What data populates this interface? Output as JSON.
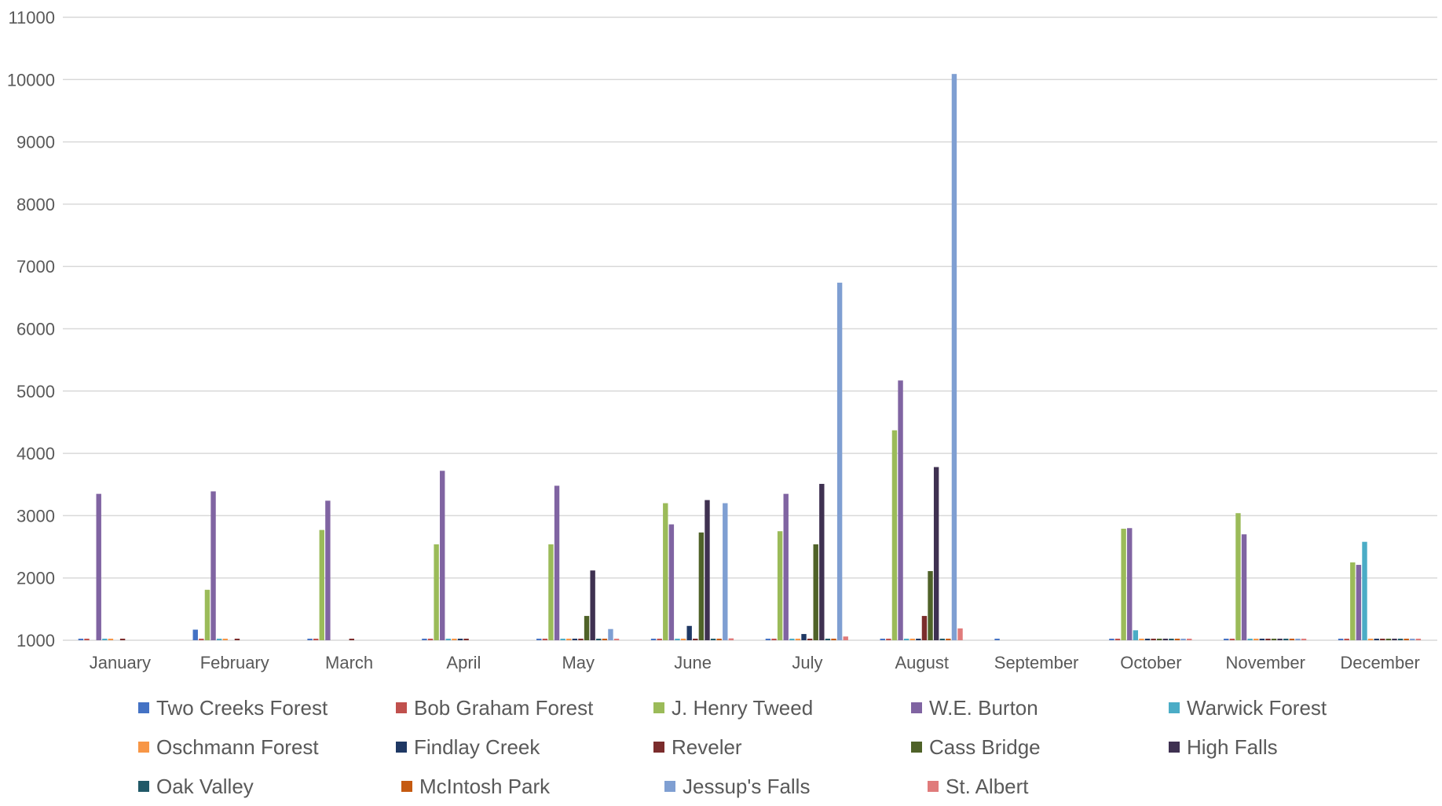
{
  "chart_data": {
    "type": "bar",
    "title": "",
    "xlabel": "",
    "ylabel": "",
    "ylim": [
      1000,
      11000
    ],
    "yticks": [
      1000,
      2000,
      3000,
      4000,
      5000,
      6000,
      7000,
      8000,
      9000,
      10000,
      11000
    ],
    "grid": true,
    "legend_position": "bottom",
    "categories": [
      "January",
      "February",
      "March",
      "April",
      "May",
      "June",
      "July",
      "August",
      "September",
      "October",
      "November",
      "December"
    ],
    "series": [
      {
        "name": "Two Creeks Forest",
        "color": "#4472C4",
        "values": [
          1000,
          1170,
          1000,
          1000,
          1000,
          1000,
          1000,
          1000,
          1000,
          1000,
          1000,
          1000
        ]
      },
      {
        "name": "Bob Graham Forest",
        "color": "#C0504D",
        "values": [
          1000,
          1000,
          1000,
          1000,
          1000,
          1000,
          1000,
          1000,
          null,
          1000,
          1000,
          1000
        ]
      },
      {
        "name": "J. Henry Tweed",
        "color": "#9BBB59",
        "values": [
          null,
          1810,
          2770,
          2540,
          2540,
          3200,
          2750,
          4370,
          null,
          2790,
          3040,
          2250
        ]
      },
      {
        "name": "W.E. Burton",
        "color": "#8064A2",
        "values": [
          3350,
          3390,
          3240,
          3720,
          3480,
          2860,
          3350,
          5170,
          null,
          2800,
          2700,
          2210
        ]
      },
      {
        "name": "Warwick Forest",
        "color": "#4BACC6",
        "values": [
          1000,
          1020,
          null,
          1000,
          1000,
          1000,
          1000,
          1000,
          null,
          1160,
          1000,
          2580
        ]
      },
      {
        "name": "Oschmann Forest",
        "color": "#F79646",
        "values": [
          1000,
          1000,
          null,
          1000,
          1000,
          1000,
          1000,
          1000,
          null,
          1000,
          1000,
          1000
        ]
      },
      {
        "name": "Findlay Creek",
        "color": "#1F3864",
        "values": [
          null,
          null,
          null,
          1000,
          1000,
          1230,
          1100,
          1000,
          null,
          1000,
          1000,
          1000
        ]
      },
      {
        "name": "Reveler",
        "color": "#7B2C2C",
        "values": [
          1000,
          1000,
          1000,
          1000,
          1000,
          1000,
          1000,
          1390,
          null,
          1000,
          1000,
          1000
        ]
      },
      {
        "name": "Cass Bridge",
        "color": "#4F6228",
        "values": [
          null,
          null,
          null,
          null,
          1390,
          2730,
          2540,
          2110,
          null,
          1000,
          1000,
          1000
        ]
      },
      {
        "name": "High Falls",
        "color": "#3F3151",
        "values": [
          null,
          null,
          null,
          null,
          2120,
          3250,
          3510,
          3780,
          null,
          1000,
          1000,
          1000
        ]
      },
      {
        "name": "Oak Valley",
        "color": "#215968",
        "values": [
          null,
          null,
          null,
          null,
          1000,
          1000,
          1000,
          1000,
          null,
          1000,
          1000,
          1000
        ]
      },
      {
        "name": "McIntosh Park",
        "color": "#C55A11",
        "values": [
          null,
          null,
          null,
          null,
          1000,
          1000,
          1000,
          1000,
          null,
          1000,
          1000,
          1000
        ]
      },
      {
        "name": "Jessup's Falls",
        "color": "#7F9FD2",
        "values": [
          null,
          null,
          null,
          null,
          1180,
          3200,
          6740,
          10090,
          null,
          1000,
          1000,
          1000
        ]
      },
      {
        "name": "St. Albert",
        "color": "#E07B7B",
        "values": [
          null,
          null,
          null,
          null,
          1000,
          1030,
          1060,
          1190,
          null,
          1000,
          1000,
          1000
        ]
      }
    ]
  }
}
